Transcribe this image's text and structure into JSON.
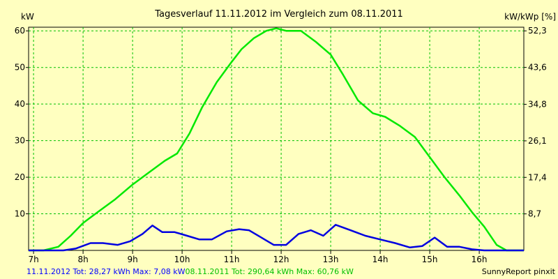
{
  "chart_data": {
    "type": "line",
    "title": "Tagesverlauf 11.11.2012 im Vergleich zum 08.11.2011",
    "ylabel_left": "kW",
    "ylabel_right": "kW/kWp [%]",
    "xlim": [
      6.9,
      16.9
    ],
    "ylim": [
      0,
      61
    ],
    "x_ticks": [
      7,
      8,
      9,
      10,
      11,
      12,
      13,
      14,
      15,
      16
    ],
    "x_tick_labels": [
      "7h",
      "8h",
      "9h",
      "10h",
      "11h",
      "12h",
      "13h",
      "14h",
      "15h",
      "16h"
    ],
    "y_ticks": [
      10,
      20,
      30,
      40,
      50,
      60
    ],
    "y_tick_labels": [
      "10",
      "20",
      "30",
      "40",
      "50",
      "60"
    ],
    "y2_ticks": [
      8.7,
      17.4,
      26.1,
      34.8,
      43.6,
      52.3
    ],
    "y2_tick_labels": [
      "8,7",
      "17,4",
      "26,1",
      "34,8",
      "43,6",
      "52,3"
    ],
    "y2_max": 52.3,
    "grid": true,
    "series": [
      {
        "name": "08.11.2011",
        "color": "#00e800",
        "x": [
          6.9,
          7.2,
          7.5,
          7.75,
          8.0,
          8.3,
          8.65,
          9.0,
          9.35,
          9.65,
          9.9,
          10.15,
          10.4,
          10.7,
          11.0,
          11.2,
          11.45,
          11.7,
          11.9,
          12.1,
          12.4,
          12.7,
          13.0,
          13.25,
          13.55,
          13.85,
          14.1,
          14.4,
          14.7,
          15.0,
          15.3,
          15.6,
          15.85,
          16.1,
          16.35,
          16.55,
          16.9
        ],
        "y": [
          0,
          0,
          1,
          4,
          7.5,
          10.5,
          14,
          18,
          21.5,
          24.5,
          26.5,
          32,
          39,
          46,
          51.5,
          55,
          58,
          60,
          60.7,
          60,
          60,
          57,
          53.5,
          48,
          41,
          37.5,
          36.5,
          34,
          31,
          25.5,
          20,
          15,
          10.5,
          6.5,
          1.5,
          0,
          0
        ]
      },
      {
        "name": "11.11.2012",
        "color": "#0000e0",
        "x": [
          6.9,
          7.3,
          7.6,
          7.85,
          8.15,
          8.4,
          8.7,
          8.95,
          9.2,
          9.4,
          9.6,
          9.85,
          10.1,
          10.35,
          10.6,
          10.9,
          11.15,
          11.35,
          11.6,
          11.85,
          12.1,
          12.35,
          12.6,
          12.85,
          13.1,
          13.4,
          13.7,
          14.0,
          14.3,
          14.6,
          14.85,
          15.1,
          15.35,
          15.6,
          15.85,
          16.1,
          16.3,
          16.9
        ],
        "y": [
          0,
          0,
          0,
          0.5,
          2,
          2,
          1.5,
          2.5,
          4.5,
          6.8,
          5,
          5,
          4,
          3,
          3,
          5.2,
          5.8,
          5.5,
          3.5,
          1.5,
          1.5,
          4.5,
          5.5,
          4,
          7,
          5.5,
          4,
          3,
          2,
          0.8,
          1.2,
          3.5,
          1,
          1,
          0.3,
          0,
          0,
          0
        ]
      }
    ]
  },
  "footer": {
    "series_2012_text": "11.11.2012 Tot: 28,27 kWh Max: 7,08 kW",
    "series_2011_text": "08.11.2011 Tot: 290,64 kWh Max: 60,76 kW",
    "source_text": "SunnyReport pinxit"
  },
  "colors": {
    "background": "#ffffc0",
    "grid": "#00c000",
    "axis": "#000000",
    "footer_2012": "#0000ff",
    "footer_2011": "#00c000"
  }
}
